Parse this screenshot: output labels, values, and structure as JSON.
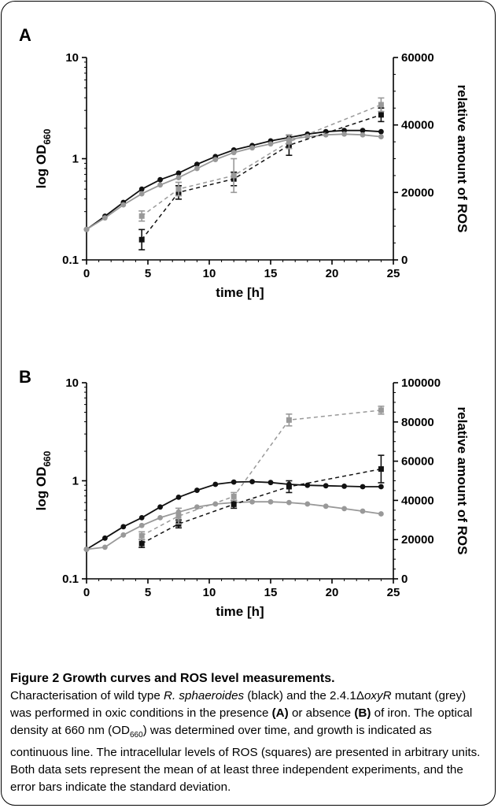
{
  "caption": {
    "title": "Figure 2 Growth curves and ROS level measurements.",
    "parts": [
      {
        "t": "Characterisation of wild type ",
        "s": "n"
      },
      {
        "t": "R. sphaeroides",
        "s": "i"
      },
      {
        "t": " (black) and the 2.4.1Δ",
        "s": "n"
      },
      {
        "t": "oxyR",
        "s": "i"
      },
      {
        "t": " mutant (grey) was performed in oxic conditions in the presence ",
        "s": "n"
      },
      {
        "t": "(A)",
        "s": "b"
      },
      {
        "t": " or absence ",
        "s": "n"
      },
      {
        "t": "(B)",
        "s": "b"
      },
      {
        "t": " of iron. The optical density at 660 nm (OD",
        "s": "n"
      },
      {
        "t": "660",
        "s": "sub"
      },
      {
        "t": ") was determined over time, and growth is indicated as continuous line. The intracellular levels of ROS (squares) are presented in arbitrary units. Both data sets represent the mean of at least three independent experiments, and the error bars indicate the standard deviation.",
        "s": "n"
      }
    ]
  },
  "colors": {
    "black_series": "#111111",
    "grey_series": "#999999"
  },
  "chart_data": [
    {
      "panel": "A",
      "type": "line",
      "xlabel": "time [h]",
      "ylabel": "log OD",
      "ylabel_sub": "660",
      "y2label": "relative amount of ROS",
      "xlim": [
        0,
        25
      ],
      "ylim": [
        0.1,
        10
      ],
      "yscale": "log",
      "y2lim": [
        0,
        60000
      ],
      "x_ticks": [
        "0",
        "5",
        "10",
        "15",
        "20",
        "25"
      ],
      "y_ticks": [
        "0.1",
        "1",
        "10"
      ],
      "y2_ticks": [
        "0",
        "20000",
        "40000",
        "60000"
      ],
      "grid": false,
      "series": [
        {
          "axis": "left",
          "style": "solid",
          "marker": "circle",
          "color": "#111111",
          "x": [
            0,
            1.5,
            3,
            4.5,
            6,
            7.5,
            9,
            10.5,
            12,
            13.5,
            15,
            16.5,
            18,
            19.5,
            21,
            22.5,
            24
          ],
          "y": [
            0.2,
            0.27,
            0.37,
            0.5,
            0.62,
            0.72,
            0.88,
            1.05,
            1.22,
            1.35,
            1.5,
            1.62,
            1.75,
            1.85,
            1.9,
            1.9,
            1.85
          ]
        },
        {
          "axis": "left",
          "style": "solid",
          "marker": "circle",
          "color": "#999999",
          "x": [
            0,
            1.5,
            3,
            4.5,
            6,
            7.5,
            9,
            10.5,
            12,
            13.5,
            15,
            16.5,
            18,
            19.5,
            21,
            22.5,
            24
          ],
          "y": [
            0.2,
            0.26,
            0.35,
            0.45,
            0.55,
            0.65,
            0.8,
            0.98,
            1.15,
            1.28,
            1.4,
            1.55,
            1.65,
            1.72,
            1.75,
            1.72,
            1.65
          ]
        },
        {
          "axis": "right",
          "style": "dashed",
          "marker": "square",
          "color": "#111111",
          "x": [
            4.5,
            7.5,
            12,
            16.5,
            24
          ],
          "y": [
            6000,
            20000,
            24000,
            34000,
            43000
          ],
          "err": [
            3000,
            2000,
            2000,
            3000,
            2000
          ]
        },
        {
          "axis": "right",
          "style": "dashed",
          "marker": "square",
          "color": "#999999",
          "x": [
            4.5,
            7.5,
            12,
            16.5,
            24
          ],
          "y": [
            13000,
            21000,
            25000,
            35000,
            46000
          ],
          "err": [
            1500,
            2000,
            5000,
            2000,
            2000
          ]
        }
      ]
    },
    {
      "panel": "B",
      "type": "line",
      "xlabel": "time [h]",
      "ylabel": "log OD",
      "ylabel_sub": "660",
      "y2label": "relative amount of ROS",
      "xlim": [
        0,
        25
      ],
      "ylim": [
        0.1,
        10
      ],
      "yscale": "log",
      "y2lim": [
        0,
        100000
      ],
      "x_ticks": [
        "0",
        "5",
        "10",
        "15",
        "20",
        "25"
      ],
      "y_ticks": [
        "0.1",
        "1",
        "10"
      ],
      "y2_ticks": [
        "0",
        "20000",
        "40000",
        "60000",
        "80000",
        "100000"
      ],
      "grid": false,
      "series": [
        {
          "axis": "left",
          "style": "solid",
          "marker": "circle",
          "color": "#111111",
          "x": [
            0,
            1.5,
            3,
            4.5,
            6,
            7.5,
            9,
            10.5,
            12,
            13.5,
            15,
            16.5,
            18,
            19.5,
            21,
            22.5,
            24
          ],
          "y": [
            0.2,
            0.26,
            0.34,
            0.42,
            0.54,
            0.68,
            0.8,
            0.92,
            0.97,
            0.98,
            0.96,
            0.92,
            0.9,
            0.89,
            0.88,
            0.87,
            0.87
          ]
        },
        {
          "axis": "left",
          "style": "solid",
          "marker": "circle",
          "color": "#999999",
          "x": [
            0,
            1.5,
            3,
            4.5,
            6,
            7.5,
            9,
            10.5,
            12,
            13.5,
            15,
            16.5,
            18,
            19.5,
            21,
            22.5,
            24
          ],
          "y": [
            0.2,
            0.21,
            0.28,
            0.35,
            0.42,
            0.48,
            0.54,
            0.58,
            0.6,
            0.61,
            0.61,
            0.6,
            0.58,
            0.55,
            0.52,
            0.49,
            0.46
          ]
        },
        {
          "axis": "right",
          "style": "dashed",
          "marker": "square",
          "color": "#111111",
          "x": [
            4.5,
            7.5,
            12,
            16.5,
            24
          ],
          "y": [
            18000,
            28000,
            38000,
            47000,
            56000
          ],
          "err": [
            2000,
            2000,
            2000,
            3000,
            7000
          ]
        },
        {
          "axis": "right",
          "style": "dashed",
          "marker": "square",
          "color": "#999999",
          "x": [
            4.5,
            7.5,
            12,
            16.5,
            24
          ],
          "y": [
            22000,
            32000,
            42000,
            81000,
            86000
          ],
          "err": [
            2000,
            4000,
            2000,
            3000,
            2000
          ]
        }
      ]
    }
  ]
}
